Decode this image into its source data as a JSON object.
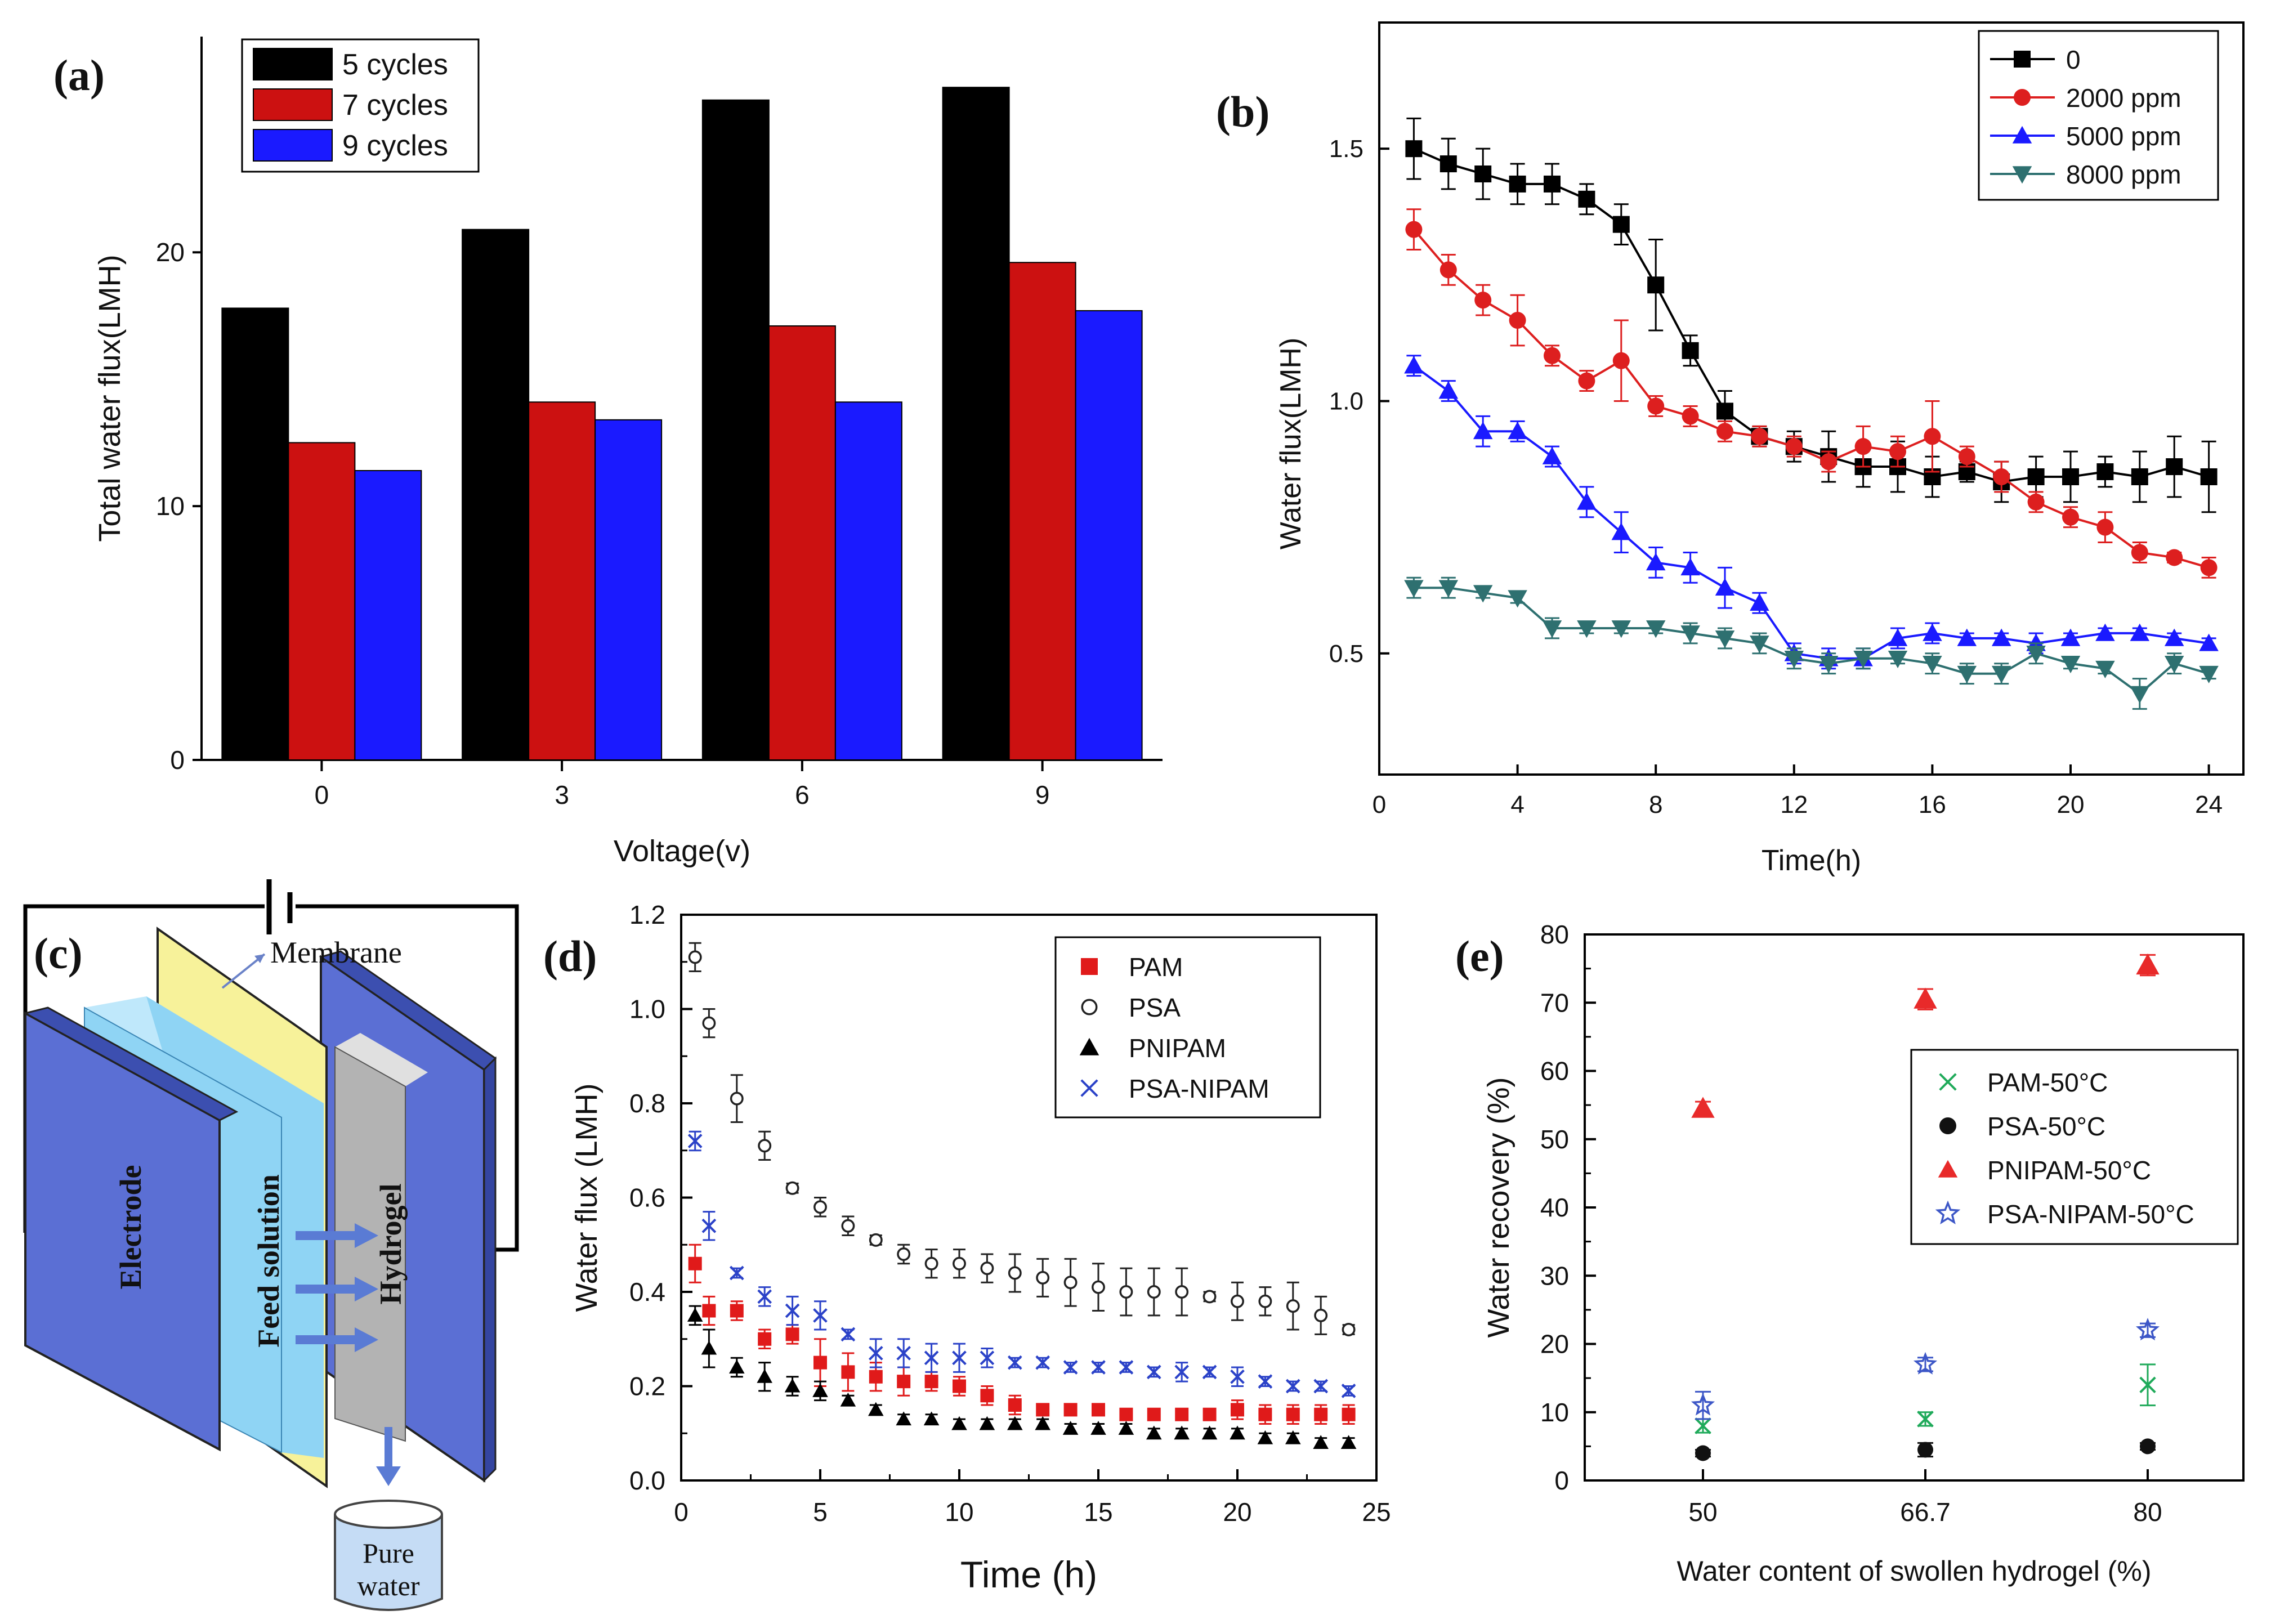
{
  "figure": {
    "panels": [
      {
        "letter": "(a)",
        "chart_data": {
          "type": "bar",
          "xlabel": "Voltage(v)",
          "ylabel": "Total water flux(LMH)",
          "categories": [
            "0",
            "3",
            "6",
            "9"
          ],
          "ylim": [
            0,
            28.5
          ],
          "yticks": [
            0,
            10,
            20
          ],
          "legend": "top-left",
          "grid": false,
          "series": [
            {
              "name": "5 cycles",
              "color": "#000000",
              "values": [
                17.8,
                20.9,
                26.0,
                26.5
              ]
            },
            {
              "name": "7 cycles",
              "color": "#cc1111",
              "values": [
                12.5,
                14.1,
                17.1,
                19.6
              ]
            },
            {
              "name": "9 cycles",
              "color": "#1a1aff",
              "values": [
                11.4,
                13.4,
                14.1,
                17.7
              ]
            }
          ]
        }
      },
      {
        "letter": "(b)",
        "chart_data": {
          "type": "line",
          "xlabel": "Time(h)",
          "ylabel": "Water flux(LMH)",
          "xlim": [
            0,
            25
          ],
          "ylim": [
            0.26,
            1.75
          ],
          "xticks": [
            0,
            4,
            8,
            12,
            16,
            20,
            24
          ],
          "yticks": [
            0.5,
            1.0,
            1.5
          ],
          "ytick_labels": [
            "0.5",
            "1.0",
            "1.5"
          ],
          "legend": "top-right",
          "grid": false,
          "x": [
            1,
            2,
            3,
            4,
            5,
            6,
            7,
            8,
            9,
            10,
            11,
            12,
            13,
            14,
            15,
            16,
            17,
            18,
            19,
            20,
            21,
            22,
            23,
            24
          ],
          "series": [
            {
              "name": "0",
              "color": "#000000",
              "marker": "square",
              "values": [
                1.5,
                1.47,
                1.45,
                1.43,
                1.43,
                1.4,
                1.35,
                1.23,
                1.1,
                0.98,
                0.93,
                0.91,
                0.89,
                0.87,
                0.87,
                0.85,
                0.86,
                0.84,
                0.85,
                0.85,
                0.86,
                0.85,
                0.87,
                0.85
              ],
              "errors": [
                0.06,
                0.05,
                0.05,
                0.04,
                0.04,
                0.03,
                0.04,
                0.09,
                0.03,
                0.04,
                0.02,
                0.03,
                0.05,
                0.04,
                0.05,
                0.04,
                0.02,
                0.04,
                0.04,
                0.05,
                0.03,
                0.05,
                0.06,
                0.07
              ]
            },
            {
              "name": "2000 ppm",
              "color": "#dd1f1f",
              "marker": "circle",
              "values": [
                1.34,
                1.26,
                1.2,
                1.16,
                1.09,
                1.04,
                1.08,
                0.99,
                0.97,
                0.94,
                0.93,
                0.91,
                0.88,
                0.91,
                0.9,
                0.93,
                0.89,
                0.85,
                0.8,
                0.77,
                0.75,
                0.7,
                0.69,
                0.67
              ],
              "errors": [
                0.04,
                0.03,
                0.03,
                0.05,
                0.02,
                0.02,
                0.08,
                0.02,
                0.02,
                0.02,
                0.02,
                0.02,
                0.02,
                0.04,
                0.03,
                0.07,
                0.02,
                0.03,
                0.02,
                0.02,
                0.03,
                0.02,
                0.01,
                0.02
              ]
            },
            {
              "name": "5000 ppm",
              "color": "#1a1aff",
              "marker": "triangle-up",
              "values": [
                1.07,
                1.02,
                0.94,
                0.94,
                0.89,
                0.8,
                0.74,
                0.68,
                0.67,
                0.63,
                0.6,
                0.5,
                0.49,
                0.49,
                0.53,
                0.54,
                0.53,
                0.53,
                0.52,
                0.53,
                0.54,
                0.54,
                0.53,
                0.52
              ],
              "errors": [
                0.02,
                0.02,
                0.03,
                0.02,
                0.02,
                0.03,
                0.04,
                0.03,
                0.03,
                0.04,
                0.02,
                0.02,
                0.02,
                0.02,
                0.02,
                0.02,
                0.01,
                0.01,
                0.02,
                0.01,
                0.01,
                0.01,
                0.01,
                0.01
              ]
            },
            {
              "name": "8000 ppm",
              "color": "#2e7070",
              "marker": "triangle-down",
              "values": [
                0.63,
                0.63,
                0.62,
                0.61,
                0.55,
                0.55,
                0.55,
                0.55,
                0.54,
                0.53,
                0.52,
                0.49,
                0.48,
                0.49,
                0.49,
                0.48,
                0.46,
                0.46,
                0.5,
                0.48,
                0.47,
                0.42,
                0.48,
                0.46
              ],
              "errors": [
                0.02,
                0.02,
                0.01,
                0.01,
                0.02,
                0.01,
                0.01,
                0.01,
                0.02,
                0.02,
                0.02,
                0.02,
                0.02,
                0.02,
                0.01,
                0.02,
                0.02,
                0.02,
                0.02,
                0.01,
                0.01,
                0.03,
                0.02,
                0.01
              ]
            }
          ]
        }
      },
      {
        "letter": "(c)",
        "diagram": {
          "labels": {
            "membrane": "Membrane",
            "electrode": "Electrode",
            "feed": "Feed solution",
            "hydrogel": "Hydrogel",
            "pure_line1": "Pure",
            "pure_line2": "water"
          },
          "colors": {
            "electrode": "#5b6fd4",
            "membrane": "#f7f29a",
            "feed": "#8fd4f4",
            "hydrogel": "#b3b3b3",
            "arrow": "#5a7bd4",
            "beaker": "#c5dcf5"
          }
        }
      },
      {
        "letter": "(d)",
        "chart_data": {
          "type": "scatter",
          "xlabel": "Time (h)",
          "ylabel": "Water flux (LMH)",
          "xlim": [
            0,
            25
          ],
          "ylim": [
            0,
            1.2
          ],
          "xticks": [
            0,
            5,
            10,
            15,
            20,
            25
          ],
          "yticks": [
            0,
            0.2,
            0.4,
            0.6,
            0.8,
            1.0,
            1.2
          ],
          "ytick_labels": [
            "0.0",
            "0.2",
            "0.4",
            "0.6",
            "0.8",
            "1.0",
            "1.2"
          ],
          "legend": "top-right",
          "grid": false,
          "x": [
            0.5,
            1,
            2,
            3,
            4,
            5,
            6,
            7,
            8,
            9,
            10,
            11,
            12,
            13,
            14,
            15,
            16,
            17,
            18,
            19,
            20,
            21,
            22,
            23,
            24
          ],
          "series": [
            {
              "name": "PAM",
              "color": "#e01a1a",
              "marker": "square",
              "values": [
                0.46,
                0.36,
                0.36,
                0.3,
                0.31,
                0.25,
                0.23,
                0.22,
                0.21,
                0.21,
                0.2,
                0.18,
                0.16,
                0.15,
                0.15,
                0.15,
                0.14,
                0.14,
                0.14,
                0.14,
                0.15,
                0.14,
                0.14,
                0.14,
                0.14
              ],
              "errors": [
                0.04,
                0.03,
                0.02,
                0.02,
                0.02,
                0.05,
                0.04,
                0.03,
                0.03,
                0.02,
                0.02,
                0.02,
                0.02,
                0.01,
                0.01,
                0.01,
                0.01,
                0.01,
                0.01,
                0.01,
                0.02,
                0.02,
                0.02,
                0.02,
                0.02
              ]
            },
            {
              "name": "PSA",
              "color": "#222222",
              "marker": "circle-open",
              "values": [
                1.11,
                0.97,
                0.81,
                0.71,
                0.62,
                0.58,
                0.54,
                0.51,
                0.48,
                0.46,
                0.46,
                0.45,
                0.44,
                0.43,
                0.42,
                0.41,
                0.4,
                0.4,
                0.4,
                0.39,
                0.38,
                0.38,
                0.37,
                0.35,
                0.32
              ],
              "errors": [
                0.03,
                0.03,
                0.05,
                0.03,
                0.01,
                0.02,
                0.02,
                0.01,
                0.02,
                0.03,
                0.03,
                0.03,
                0.04,
                0.04,
                0.05,
                0.05,
                0.05,
                0.05,
                0.05,
                0.01,
                0.04,
                0.03,
                0.05,
                0.04,
                0.01
              ]
            },
            {
              "name": "PNIPAM",
              "color": "#000000",
              "marker": "triangle-up",
              "values": [
                0.35,
                0.28,
                0.24,
                0.22,
                0.2,
                0.19,
                0.17,
                0.15,
                0.13,
                0.13,
                0.12,
                0.12,
                0.12,
                0.12,
                0.11,
                0.11,
                0.11,
                0.1,
                0.1,
                0.1,
                0.1,
                0.09,
                0.09,
                0.08,
                0.08
              ],
              "errors": [
                0.02,
                0.04,
                0.02,
                0.03,
                0.02,
                0.02,
                0.01,
                0.01,
                0.01,
                0.01,
                0.01,
                0.01,
                0.01,
                0.01,
                0.01,
                0.01,
                0.01,
                0.01,
                0.01,
                0.01,
                0.01,
                0.01,
                0.01,
                0.01,
                0.01
              ]
            },
            {
              "name": "PSA-NIPAM",
              "color": "#2b42c8",
              "marker": "cross",
              "values": [
                0.72,
                0.54,
                0.44,
                0.39,
                0.36,
                0.35,
                0.31,
                0.27,
                0.27,
                0.26,
                0.26,
                0.26,
                0.25,
                0.25,
                0.24,
                0.24,
                0.24,
                0.23,
                0.23,
                0.23,
                0.22,
                0.21,
                0.2,
                0.2,
                0.19
              ],
              "errors": [
                0.02,
                0.03,
                0.01,
                0.02,
                0.03,
                0.03,
                0.01,
                0.03,
                0.03,
                0.03,
                0.03,
                0.02,
                0.01,
                0.01,
                0.01,
                0.01,
                0.01,
                0.01,
                0.02,
                0.01,
                0.02,
                0.01,
                0.01,
                0.01,
                0.01
              ]
            }
          ]
        }
      },
      {
        "letter": "(e)",
        "chart_data": {
          "type": "scatter",
          "xlabel": "Water content of swollen hydrogel (%)",
          "ylabel": "Water recovery (%)",
          "categories": [
            "50",
            "66.7",
            "80"
          ],
          "ylim": [
            0,
            80
          ],
          "yticks": [
            0,
            10,
            20,
            30,
            40,
            50,
            60,
            70,
            80
          ],
          "legend": "center-right",
          "grid": false,
          "series": [
            {
              "name": "PAM-50°C",
              "color": "#1faa5a",
              "marker": "cross",
              "values": [
                8,
                9,
                14
              ],
              "errors": [
                1,
                1,
                3
              ]
            },
            {
              "name": "PSA-50°C",
              "color": "#111111",
              "marker": "circle",
              "values": [
                4,
                4.5,
                5
              ],
              "errors": [
                0.5,
                1,
                0.5
              ]
            },
            {
              "name": "PNIPAM-50°C",
              "color": "#e82a2a",
              "marker": "triangle-up",
              "values": [
                54.5,
                70.5,
                75.5
              ],
              "errors": [
                1,
                1.5,
                1.5
              ]
            },
            {
              "name": "PSA-NIPAM-50°C",
              "color": "#3d57c7",
              "marker": "star-open",
              "values": [
                11,
                17,
                22
              ],
              "errors": [
                2,
                1,
                1
              ]
            }
          ]
        }
      }
    ]
  }
}
